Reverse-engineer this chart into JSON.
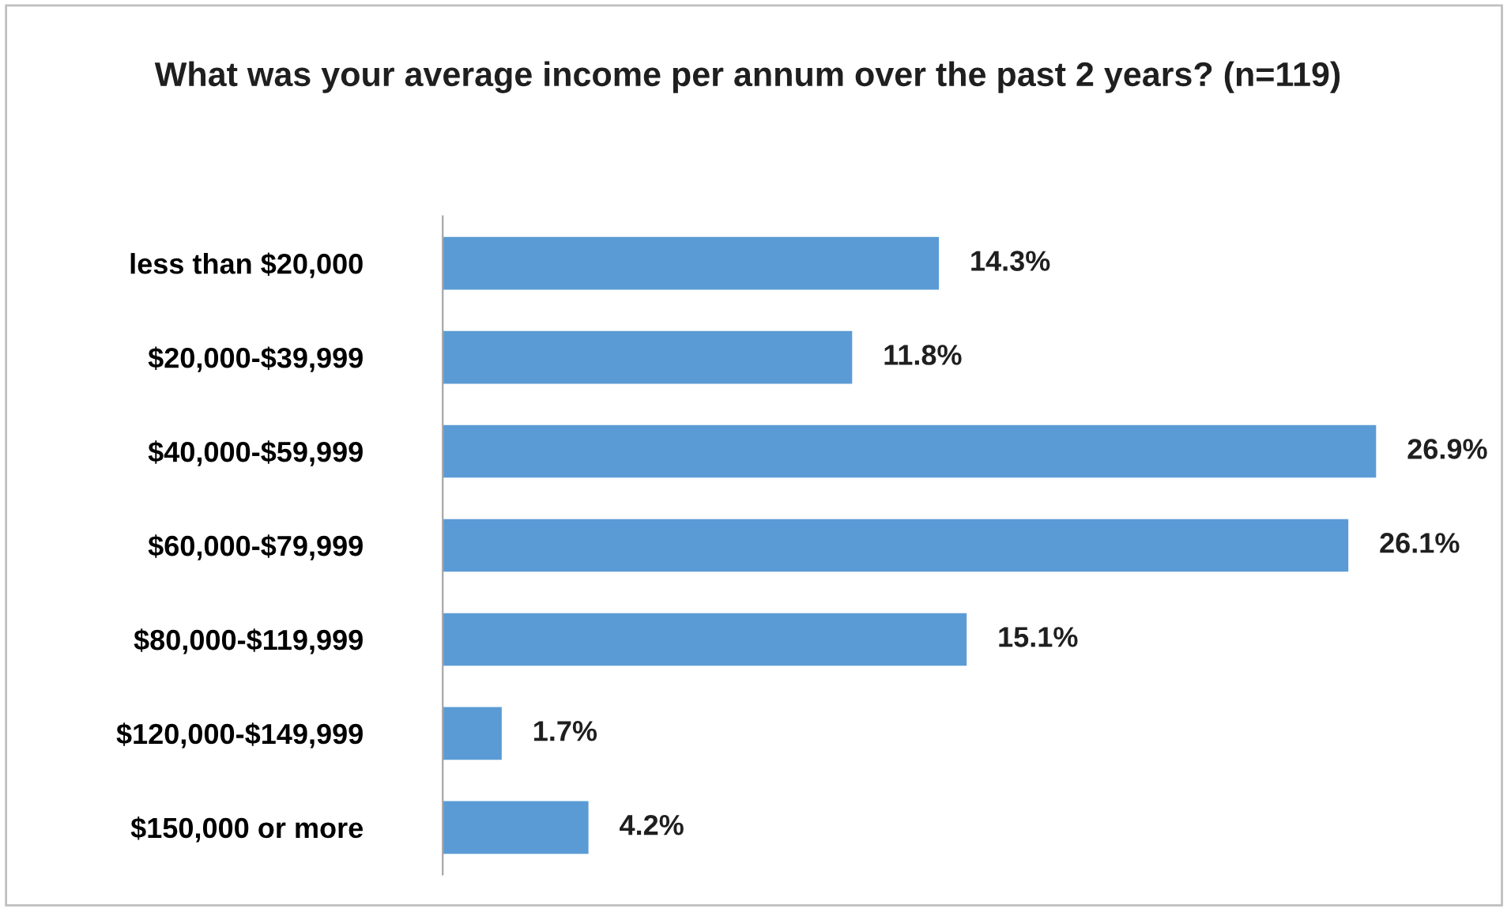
{
  "chart_data": {
    "type": "bar",
    "orientation": "horizontal",
    "title": "What was your average income per annum over the past 2 years? (n=119)",
    "categories": [
      "less than $20,000",
      "$20,000-$39,999",
      "$40,000-$59,999",
      "$60,000-$79,999",
      "$80,000-$119,999",
      "$120,000-$149,999",
      "$150,000 or more"
    ],
    "values": [
      14.3,
      11.8,
      26.9,
      26.1,
      15.1,
      1.7,
      4.2
    ],
    "value_labels": [
      "14.3%",
      "11.8%",
      "26.9%",
      "26.1%",
      "15.1%",
      "1.7%",
      "4.2%"
    ],
    "color": "#5b9bd5",
    "grid": false,
    "legend": false
  }
}
